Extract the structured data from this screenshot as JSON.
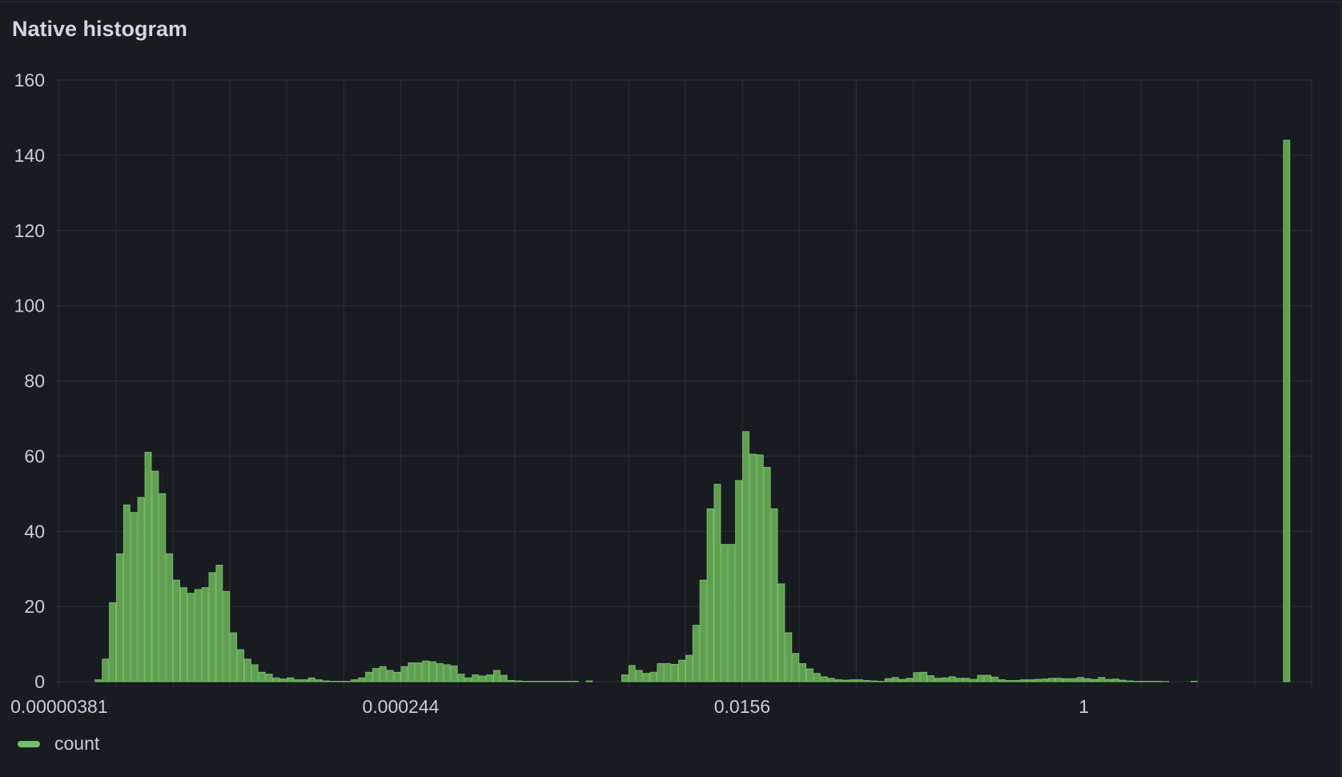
{
  "panel": {
    "title": "Native histogram"
  },
  "legend": {
    "items": [
      {
        "label": "count",
        "color": "#73bf69"
      }
    ]
  },
  "chart_data": {
    "type": "bar",
    "title": "Native histogram",
    "x_scale": "log2",
    "xlim": [
      3.815e-06,
      16
    ],
    "ylim": [
      0,
      160
    ],
    "y_ticks": [
      "0",
      "20",
      "40",
      "60",
      "80",
      "100",
      "120",
      "140",
      "160"
    ],
    "x_ticks": [
      {
        "value": 3.81e-06,
        "label": "0.00000381"
      },
      {
        "value": 0.000244,
        "label": "0.000244"
      },
      {
        "value": 0.0156,
        "label": "0.0156"
      },
      {
        "value": 1,
        "label": "1"
      }
    ],
    "grid": true,
    "legend_placement": "bottom-left",
    "bar_fill": "#629e51",
    "bar_stroke": "#73bf69",
    "buckets_per_doubling": 8,
    "first_bucket_lower": 5.88e-06,
    "series": [
      {
        "name": "count",
        "values": [
          0.5,
          6,
          21,
          34,
          47,
          45,
          49,
          61,
          56,
          50,
          34,
          27,
          25,
          23.5,
          24.5,
          25,
          29,
          31,
          24,
          13,
          8.5,
          6,
          4.5,
          2.5,
          2,
          1,
          0.7,
          1,
          0.5,
          0.5,
          1,
          0.5,
          0.2,
          0.1,
          0.1,
          0.1,
          0.5,
          1,
          2.5,
          3.5,
          4,
          3,
          2.5,
          4,
          5,
          5,
          5.5,
          5.3,
          4.8,
          4.5,
          4.2,
          2,
          1,
          1.8,
          1.5,
          1.8,
          3,
          1.7,
          0.3,
          0.2,
          0.1,
          0.1,
          0.1,
          0.1,
          0.1,
          0.1,
          0.1,
          0.1,
          0,
          0.2,
          0,
          0,
          0,
          0,
          1.8,
          4.3,
          3,
          2.2,
          2.5,
          4.8,
          4.8,
          4.6,
          5.7,
          7,
          15,
          27,
          46,
          52.5,
          36.5,
          36.5,
          53.5,
          66.5,
          60.5,
          60.3,
          57,
          46,
          26,
          13,
          7.5,
          4.8,
          3.4,
          2.2,
          1.3,
          0.9,
          0.5,
          0.4,
          0.5,
          0.5,
          0.3,
          0.2,
          0.1,
          0.8,
          1.1,
          0.6,
          0.9,
          2.4,
          2.5,
          1.6,
          0.9,
          1.0,
          1.3,
          0.9,
          0.9,
          0.6,
          1.7,
          1.7,
          1.2,
          0.5,
          0.3,
          0.3,
          0.5,
          0.5,
          0.6,
          0.7,
          0.9,
          0.9,
          0.8,
          0.8,
          1.1,
          0.8,
          0.6,
          1.1,
          0.6,
          0.7,
          0.4,
          0.2,
          0.1,
          0.1,
          0.1,
          0.1,
          0.05,
          0,
          0,
          0,
          0.1,
          0,
          0,
          0,
          0,
          0,
          0,
          0,
          0,
          0,
          0,
          0,
          0,
          144
        ]
      }
    ]
  }
}
